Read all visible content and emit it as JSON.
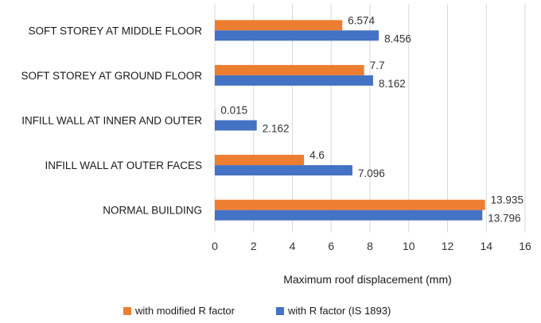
{
  "chart_data": {
    "type": "bar",
    "orientation": "horizontal",
    "categories": [
      "SOFT STOREY AT MIDDLE FLOOR",
      "SOFT STOREY AT GROUND FLOOR",
      "INFILL WALL AT INNER AND OUTER",
      "INFILL WALL AT OUTER FACES",
      "NORMAL BUILDING"
    ],
    "series": [
      {
        "name": "with modified R factor",
        "color": "#ED7D31",
        "values": [
          6.574,
          7.7,
          0.015,
          4.6,
          13.935
        ],
        "labels": [
          "6.574",
          "7.7",
          "0.015",
          "4.6",
          "13.935"
        ]
      },
      {
        "name": "with R factor (IS 1893)",
        "color": "#4472C4",
        "values": [
          8.456,
          8.162,
          2.162,
          7.096,
          13.796
        ],
        "labels": [
          "8.456",
          "8.162",
          "2.162",
          "7.096",
          "13.796"
        ]
      }
    ],
    "xlabel": "Maximum roof displacement (mm)",
    "ylabel": "",
    "title": "",
    "xlim": [
      0,
      16
    ],
    "xticks": [
      "0",
      "2",
      "4",
      "6",
      "8",
      "10",
      "12",
      "14",
      "16"
    ],
    "grid": true,
    "legend_position": "bottom"
  }
}
